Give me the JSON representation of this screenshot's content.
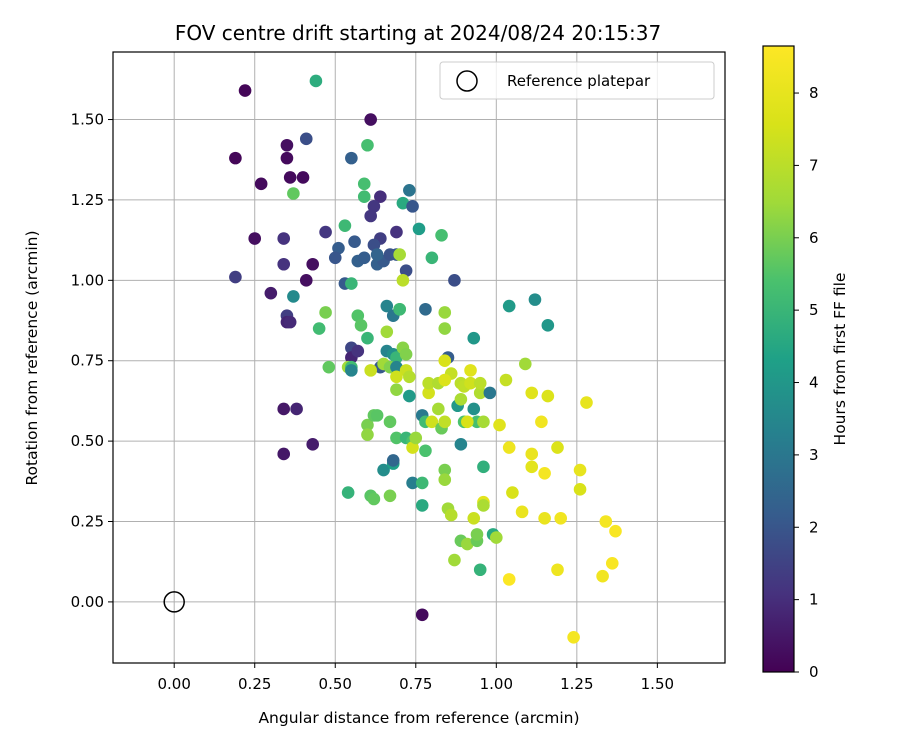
{
  "chart_data": {
    "type": "scatter",
    "title": "FOV centre drift starting at 2024/08/24 20:15:37",
    "xlabel": "Angular distance from reference (arcmin)",
    "ylabel": "Rotation from reference (arcmin)",
    "xlim": [
      -0.19,
      1.71
    ],
    "ylim": [
      -0.19,
      1.71
    ],
    "xticks": [
      "0.00",
      "0.25",
      "0.50",
      "0.75",
      "1.00",
      "1.25",
      "1.50"
    ],
    "xtick_values": [
      0,
      0.25,
      0.5,
      0.75,
      1.0,
      1.25,
      1.5
    ],
    "yticks": [
      "0.00",
      "0.25",
      "0.50",
      "0.75",
      "1.00",
      "1.25",
      "1.50"
    ],
    "ytick_values": [
      0,
      0.25,
      0.5,
      0.75,
      1.0,
      1.25,
      1.5
    ],
    "grid": true,
    "colormap": "viridis",
    "colorbar": {
      "label": "Hours from first FF file",
      "range": [
        0,
        8.65
      ],
      "ticks": [
        "0",
        "1",
        "2",
        "3",
        "4",
        "5",
        "6",
        "7",
        "8"
      ],
      "tick_values": [
        0,
        1,
        2,
        3,
        4,
        5,
        6,
        7,
        8
      ]
    },
    "legend": {
      "position": "top-right",
      "entries": [
        "Reference platepar"
      ]
    },
    "reference_point": {
      "x": 0.0,
      "y": 0.0
    },
    "series": [
      {
        "points": [
          [
            0.22,
            1.59,
            0.1
          ],
          [
            0.61,
            1.5,
            0.3
          ],
          [
            0.19,
            1.38,
            0.1
          ],
          [
            0.35,
            1.42,
            0.3
          ],
          [
            0.35,
            1.38,
            0.2
          ],
          [
            0.36,
            1.32,
            0.2
          ],
          [
            0.4,
            1.32,
            0.2
          ],
          [
            0.27,
            1.3,
            0.2
          ],
          [
            0.44,
            1.62,
            4.7
          ],
          [
            0.41,
            1.44,
            1.8
          ],
          [
            0.6,
            1.42,
            5.3
          ],
          [
            0.55,
            1.38,
            2.3
          ],
          [
            0.59,
            1.3,
            5.3
          ],
          [
            0.64,
            1.26,
            1.0
          ],
          [
            0.59,
            1.26,
            5.2
          ],
          [
            0.37,
            1.27,
            5.7
          ],
          [
            0.62,
            1.23,
            1.2
          ],
          [
            0.61,
            1.2,
            1.2
          ],
          [
            0.73,
            1.28,
            2.9
          ],
          [
            0.71,
            1.24,
            4.6
          ],
          [
            0.74,
            1.23,
            2.0
          ],
          [
            0.53,
            1.17,
            5.1
          ],
          [
            0.25,
            1.13,
            0.3
          ],
          [
            0.34,
            1.13,
            1.1
          ],
          [
            0.47,
            1.15,
            1.2
          ],
          [
            0.56,
            1.12,
            2.1
          ],
          [
            0.64,
            1.13,
            1.4
          ],
          [
            0.69,
            1.15,
            1.1
          ],
          [
            0.76,
            1.16,
            4.2
          ],
          [
            0.83,
            1.14,
            5.3
          ],
          [
            0.51,
            1.1,
            2.2
          ],
          [
            0.5,
            1.07,
            2.0
          ],
          [
            0.57,
            1.06,
            2.3
          ],
          [
            0.59,
            1.07,
            2.2
          ],
          [
            0.63,
            1.05,
            2.3
          ],
          [
            0.65,
            1.06,
            2.1
          ],
          [
            0.62,
            1.11,
            1.8
          ],
          [
            0.67,
            1.08,
            1.9
          ],
          [
            0.69,
            1.08,
            2.0
          ],
          [
            0.63,
            1.08,
            2.4
          ],
          [
            0.7,
            1.08,
            6.6
          ],
          [
            0.72,
            1.03,
            1.8
          ],
          [
            0.8,
            1.07,
            5.0
          ],
          [
            0.19,
            1.01,
            1.4
          ],
          [
            0.34,
            1.05,
            1.1
          ],
          [
            0.43,
            1.05,
            0.3
          ],
          [
            0.41,
            1.0,
            0.3
          ],
          [
            0.53,
            0.99,
            2.1
          ],
          [
            0.55,
            0.99,
            5.0
          ],
          [
            0.71,
            1.0,
            7.0
          ],
          [
            0.87,
            1.0,
            1.8
          ],
          [
            0.3,
            0.96,
            0.6
          ],
          [
            0.37,
            0.95,
            3.6
          ],
          [
            0.35,
            0.89,
            1.4
          ],
          [
            0.35,
            0.87,
            0.8
          ],
          [
            0.36,
            0.87,
            0.9
          ],
          [
            0.47,
            0.9,
            6.0
          ],
          [
            0.45,
            0.85,
            5.2
          ],
          [
            0.57,
            0.89,
            5.5
          ],
          [
            0.58,
            0.86,
            5.6
          ],
          [
            0.66,
            0.92,
            3.4
          ],
          [
            0.68,
            0.89,
            3.0
          ],
          [
            0.7,
            0.91,
            5.9
          ],
          [
            0.7,
            0.91,
            5.1
          ],
          [
            0.78,
            0.91,
            2.6
          ],
          [
            0.84,
            0.9,
            6.4
          ],
          [
            0.84,
            0.85,
            6.3
          ],
          [
            0.93,
            0.82,
            4.0
          ],
          [
            1.04,
            0.92,
            4.1
          ],
          [
            1.12,
            0.94,
            3.7
          ],
          [
            1.16,
            0.86,
            4.0
          ],
          [
            0.6,
            0.82,
            5.0
          ],
          [
            0.55,
            0.79,
            1.6
          ],
          [
            0.55,
            0.76,
            0.8
          ],
          [
            0.57,
            0.78,
            1.1
          ],
          [
            0.66,
            0.84,
            6.5
          ],
          [
            0.66,
            0.78,
            3.4
          ],
          [
            0.68,
            0.77,
            3.8
          ],
          [
            0.69,
            0.76,
            5.0
          ],
          [
            0.71,
            0.79,
            6.2
          ],
          [
            0.72,
            0.77,
            6.1
          ],
          [
            0.48,
            0.73,
            5.7
          ],
          [
            0.54,
            0.73,
            6.5
          ],
          [
            0.55,
            0.73,
            5.2
          ],
          [
            0.64,
            0.73,
            2.1
          ],
          [
            0.65,
            0.74,
            6.5
          ],
          [
            0.67,
            0.73,
            6.1
          ],
          [
            0.69,
            0.73,
            3.4
          ],
          [
            0.72,
            0.72,
            7.3
          ],
          [
            0.69,
            0.7,
            7.4
          ],
          [
            0.73,
            0.7,
            6.9
          ],
          [
            0.85,
            0.76,
            2.2
          ],
          [
            0.84,
            0.75,
            7.6
          ],
          [
            0.86,
            0.71,
            7.2
          ],
          [
            0.89,
            0.68,
            7.0
          ],
          [
            0.92,
            0.72,
            7.8
          ],
          [
            0.9,
            0.67,
            7.1
          ],
          [
            0.92,
            0.68,
            7.4
          ],
          [
            0.95,
            0.65,
            6.8
          ],
          [
            0.95,
            0.68,
            7.0
          ],
          [
            0.98,
            0.65,
            3.0
          ],
          [
            1.03,
            0.69,
            7.2
          ],
          [
            1.09,
            0.74,
            6.5
          ],
          [
            1.11,
            0.65,
            7.8
          ],
          [
            1.16,
            0.64,
            7.7
          ],
          [
            1.28,
            0.62,
            8.0
          ],
          [
            0.55,
            0.72,
            3.4
          ],
          [
            0.61,
            0.72,
            7.3
          ],
          [
            0.69,
            0.66,
            6.3
          ],
          [
            0.73,
            0.64,
            4.1
          ],
          [
            0.79,
            0.65,
            7.5
          ],
          [
            0.79,
            0.68,
            7.0
          ],
          [
            0.82,
            0.68,
            6.8
          ],
          [
            0.84,
            0.69,
            7.7
          ],
          [
            0.88,
            0.61,
            4.0
          ],
          [
            0.89,
            0.63,
            6.7
          ],
          [
            0.93,
            0.6,
            3.8
          ],
          [
            0.94,
            0.56,
            5.3
          ],
          [
            0.96,
            0.56,
            6.6
          ],
          [
            0.9,
            0.56,
            5.4
          ],
          [
            0.91,
            0.56,
            7.6
          ],
          [
            0.77,
            0.58,
            3.1
          ],
          [
            0.78,
            0.56,
            5.2
          ],
          [
            0.8,
            0.56,
            7.4
          ],
          [
            0.82,
            0.6,
            6.6
          ],
          [
            0.83,
            0.54,
            5.8
          ],
          [
            0.84,
            0.56,
            7.1
          ],
          [
            0.89,
            0.49,
            3.4
          ],
          [
            1.01,
            0.55,
            7.8
          ],
          [
            1.04,
            0.48,
            8.2
          ],
          [
            1.11,
            0.46,
            8.1
          ],
          [
            1.11,
            0.42,
            7.9
          ],
          [
            1.14,
            0.56,
            8.3
          ],
          [
            1.19,
            0.48,
            7.7
          ],
          [
            0.34,
            0.6,
            0.5
          ],
          [
            0.38,
            0.6,
            0.8
          ],
          [
            0.34,
            0.46,
            0.5
          ],
          [
            0.43,
            0.49,
            0.6
          ],
          [
            0.6,
            0.55,
            6.0
          ],
          [
            0.6,
            0.52,
            6.3
          ],
          [
            0.62,
            0.58,
            5.7
          ],
          [
            0.63,
            0.58,
            5.6
          ],
          [
            0.67,
            0.56,
            5.7
          ],
          [
            0.69,
            0.51,
            5.5
          ],
          [
            0.72,
            0.51,
            5.0
          ],
          [
            0.74,
            0.5,
            5.4
          ],
          [
            0.74,
            0.48,
            7.5
          ],
          [
            0.75,
            0.51,
            6.4
          ],
          [
            0.78,
            0.47,
            5.4
          ],
          [
            0.65,
            0.41,
            3.7
          ],
          [
            0.68,
            0.43,
            4.3
          ],
          [
            0.68,
            0.44,
            2.5
          ],
          [
            0.74,
            0.37,
            3.2
          ],
          [
            0.77,
            0.37,
            5.1
          ],
          [
            0.84,
            0.41,
            6.0
          ],
          [
            0.84,
            0.38,
            6.4
          ],
          [
            0.96,
            0.42,
            4.8
          ],
          [
            0.54,
            0.34,
            4.9
          ],
          [
            0.61,
            0.33,
            5.6
          ],
          [
            0.62,
            0.32,
            5.7
          ],
          [
            0.67,
            0.33,
            6.0
          ],
          [
            0.77,
            0.3,
            4.6
          ],
          [
            0.85,
            0.29,
            6.5
          ],
          [
            0.86,
            0.27,
            6.9
          ],
          [
            0.93,
            0.26,
            7.3
          ],
          [
            0.96,
            0.31,
            7.9
          ],
          [
            0.96,
            0.3,
            6.7
          ],
          [
            1.05,
            0.34,
            7.6
          ],
          [
            1.08,
            0.28,
            8.1
          ],
          [
            1.15,
            0.4,
            8.4
          ],
          [
            1.15,
            0.26,
            8.1
          ],
          [
            1.2,
            0.26,
            8.3
          ],
          [
            1.26,
            0.41,
            8.0
          ],
          [
            1.26,
            0.35,
            7.6
          ],
          [
            1.34,
            0.25,
            8.4
          ],
          [
            1.37,
            0.22,
            8.5
          ],
          [
            0.87,
            0.13,
            6.5
          ],
          [
            0.89,
            0.19,
            5.8
          ],
          [
            0.91,
            0.18,
            6.4
          ],
          [
            0.94,
            0.19,
            5.8
          ],
          [
            0.94,
            0.21,
            6.0
          ],
          [
            0.99,
            0.21,
            4.6
          ],
          [
            1.0,
            0.2,
            6.5
          ],
          [
            0.95,
            0.1,
            4.9
          ],
          [
            1.04,
            0.07,
            8.6
          ],
          [
            1.19,
            0.1,
            8.2
          ],
          [
            1.33,
            0.08,
            8.3
          ],
          [
            1.36,
            0.12,
            8.5
          ],
          [
            1.24,
            -0.11,
            8.4
          ],
          [
            0.77,
            -0.04,
            0.2
          ]
        ]
      }
    ]
  }
}
